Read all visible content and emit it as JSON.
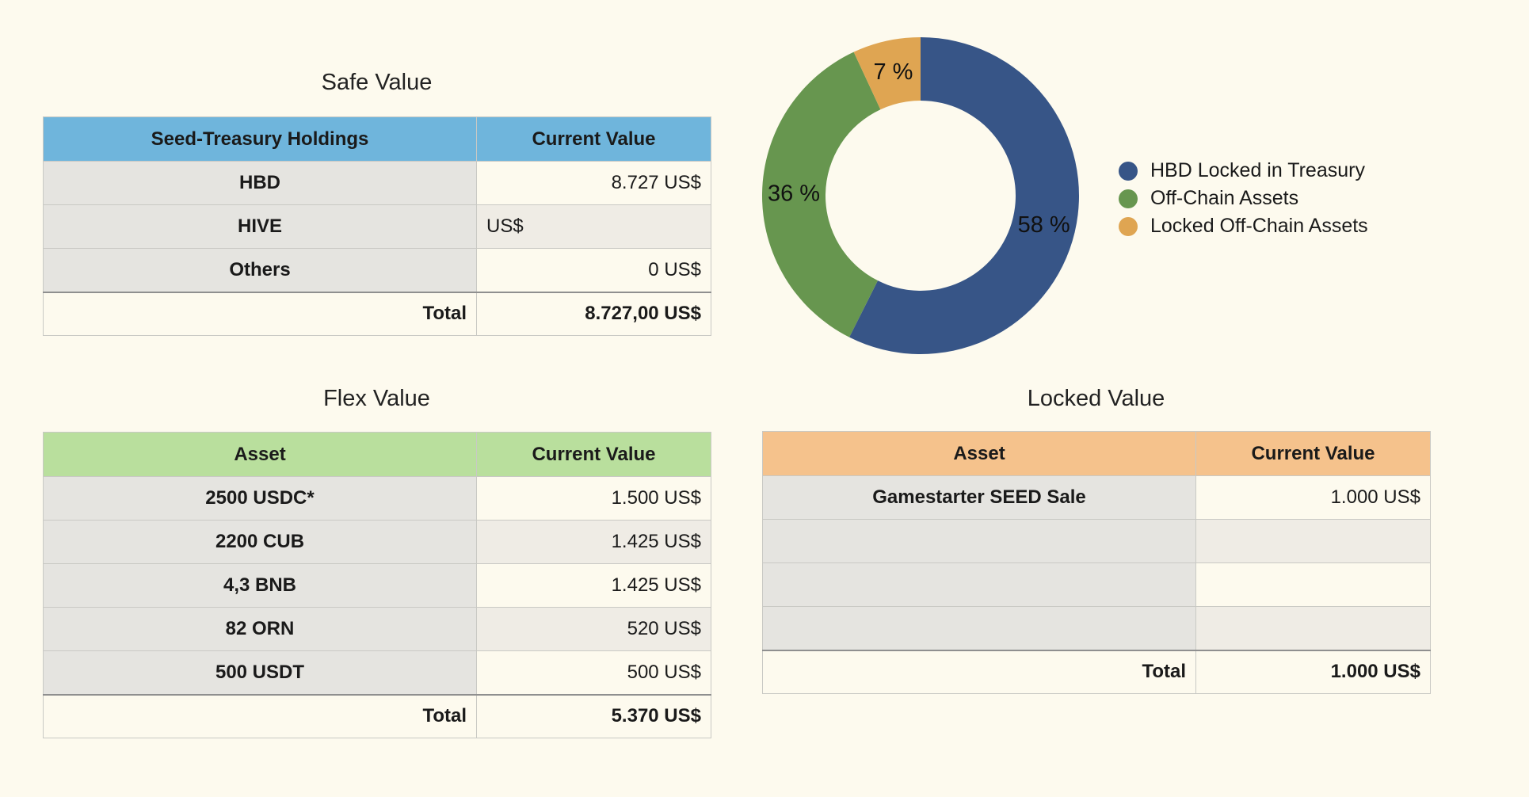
{
  "safe": {
    "title": "Safe Value",
    "headers": [
      "Seed-Treasury Holdings",
      "Current Value"
    ],
    "rows": [
      {
        "label": "HBD",
        "value": "8.727 US$"
      },
      {
        "label": "HIVE",
        "value": "US$"
      },
      {
        "label": "Others",
        "value": "0 US$"
      }
    ],
    "total_label": "Total",
    "total_value": "8.727,00 US$"
  },
  "flex": {
    "title": "Flex Value",
    "headers": [
      "Asset",
      "Current Value"
    ],
    "rows": [
      {
        "label": "2500 USDC*",
        "value": "1.500 US$"
      },
      {
        "label": "2200 CUB",
        "value": "1.425 US$"
      },
      {
        "label": "4,3 BNB",
        "value": "1.425 US$"
      },
      {
        "label": "82 ORN",
        "value": "520 US$"
      },
      {
        "label": "500 USDT",
        "value": "500 US$"
      }
    ],
    "total_label": "Total",
    "total_value": "5.370 US$"
  },
  "locked": {
    "title": "Locked Value",
    "headers": [
      "Asset",
      "Current Value"
    ],
    "rows": [
      {
        "label": "Gamestarter SEED Sale",
        "value": "1.000 US$"
      },
      {
        "label": "",
        "value": ""
      },
      {
        "label": "",
        "value": ""
      },
      {
        "label": "",
        "value": ""
      }
    ],
    "total_label": "Total",
    "total_value": "1.000 US$"
  },
  "chart_data": {
    "type": "pie",
    "donut": true,
    "title": "",
    "slices": [
      {
        "name": "HBD Locked in Treasury",
        "value": 58,
        "label": "58 %",
        "color": "#375587"
      },
      {
        "name": "Off-Chain Assets",
        "value": 36,
        "label": "36 %",
        "color": "#67964f"
      },
      {
        "name": "Locked Off-Chain Assets",
        "value": 7,
        "label": "7 %",
        "color": "#dfa552"
      }
    ],
    "legend_position": "right"
  }
}
